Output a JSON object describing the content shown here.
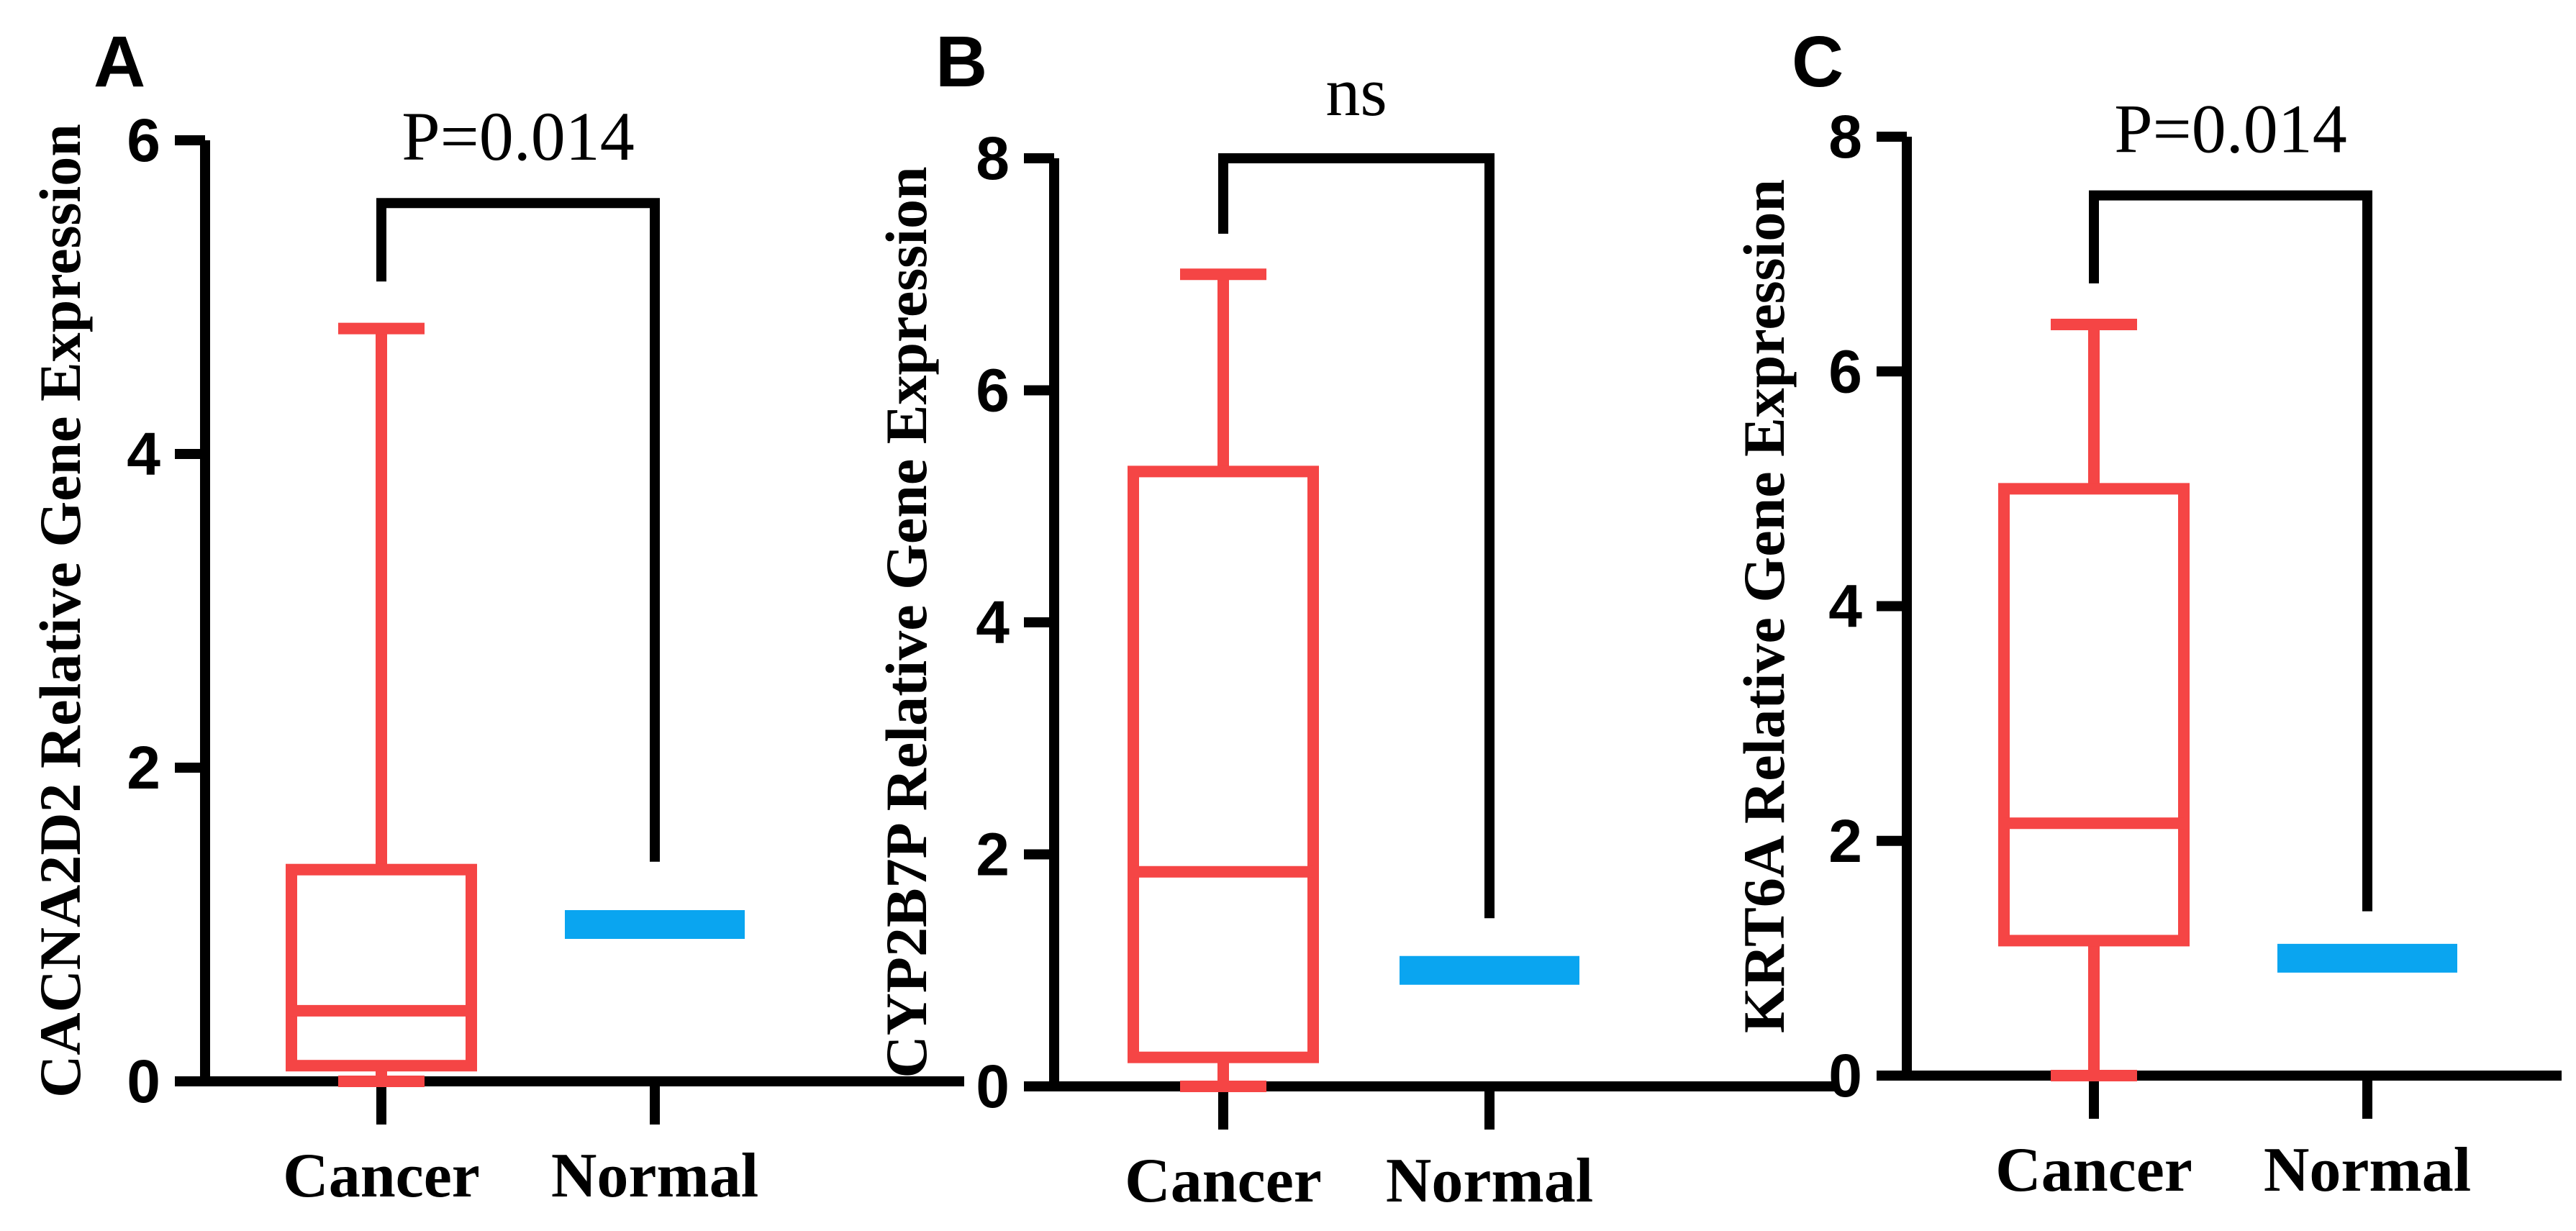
{
  "chart_data": [
    {
      "type": "box",
      "panel": "A",
      "ylabel": "CACNA2D2 Relative Gene Expression",
      "ylim": [
        0,
        6
      ],
      "yticks": [
        0,
        2,
        4,
        6
      ],
      "categories": [
        "Cancer",
        "Normal"
      ],
      "boxes": [
        {
          "name": "Cancer",
          "min": 0.0,
          "q1": 0.1,
          "median": 0.45,
          "q3": 1.35,
          "max": 4.8
        },
        {
          "name": "Normal",
          "min": 1.0,
          "q1": 1.0,
          "median": 1.0,
          "q3": 1.0,
          "max": 1.0
        }
      ],
      "significance": {
        "label": "P=0.014",
        "bracket_y": 5.6,
        "left_end": 5.1,
        "right_end": 1.4
      }
    },
    {
      "type": "box",
      "panel": "B",
      "ylabel": "CYP2B7P Relative Gene Expression",
      "ylim": [
        0,
        8
      ],
      "yticks": [
        0,
        2,
        4,
        6,
        8
      ],
      "categories": [
        "Cancer",
        "Normal"
      ],
      "boxes": [
        {
          "name": "Cancer",
          "min": 0.0,
          "q1": 0.25,
          "median": 1.85,
          "q3": 5.3,
          "max": 7.0
        },
        {
          "name": "Normal",
          "min": 1.0,
          "q1": 1.0,
          "median": 1.0,
          "q3": 1.0,
          "max": 1.0
        }
      ],
      "significance": {
        "label": "ns",
        "bracket_y": 8.0,
        "left_end": 7.35,
        "right_end": 1.45
      }
    },
    {
      "type": "box",
      "panel": "C",
      "ylabel": "KRT6A Relative Gene Expression",
      "ylim": [
        0,
        8
      ],
      "yticks": [
        0,
        2,
        4,
        6,
        8
      ],
      "categories": [
        "Cancer",
        "Normal"
      ],
      "boxes": [
        {
          "name": "Cancer",
          "min": 0.0,
          "q1": 1.15,
          "median": 2.15,
          "q3": 5.0,
          "max": 6.4
        },
        {
          "name": "Normal",
          "min": 1.0,
          "q1": 1.0,
          "median": 1.0,
          "q3": 1.0,
          "max": 1.0
        }
      ],
      "significance": {
        "label": "P=0.014",
        "bracket_y": 7.5,
        "left_end": 6.75,
        "right_end": 1.4
      }
    }
  ],
  "colors": {
    "cancer": "#F54545",
    "normal": "#0AA5F0",
    "axis": "#000000"
  }
}
